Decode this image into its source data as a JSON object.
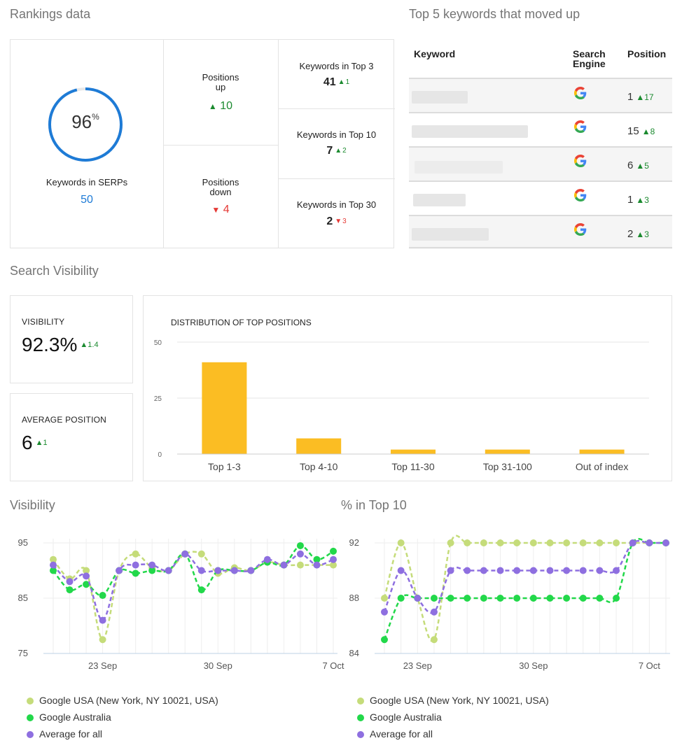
{
  "rankings": {
    "title": "Rankings data",
    "serp_percent": "96",
    "serp_percent_sign": "%",
    "serp_fraction": 0.96,
    "keywords_in_serps_label": "Keywords in SERPs",
    "keywords_in_serps_value": "50",
    "positions_up_label_1": "Positions",
    "positions_up_label_2": "up",
    "positions_up_value": "10",
    "positions_down_label_1": "Positions",
    "positions_down_label_2": "down",
    "positions_down_value": "4",
    "top3_label": "Keywords in Top 3",
    "top3_value": "41",
    "top3_delta": "1",
    "top10_label": "Keywords in Top 10",
    "top10_value": "7",
    "top10_delta": "2",
    "top30_label": "Keywords in Top 30",
    "top30_value": "2",
    "top30_delta": "3",
    "colors": {
      "up": "#1b8a2f",
      "down": "#e53935",
      "ring": "#1e7bd6"
    }
  },
  "top_keywords": {
    "title": "Top 5 keywords that moved up",
    "headers": {
      "keyword": "Keyword",
      "engine_1": "Search",
      "engine_2": "Engine",
      "position": "Position"
    },
    "rows": [
      {
        "position": "1",
        "delta": "17",
        "engine_icon": "google-icon"
      },
      {
        "position": "15",
        "delta": "8",
        "engine_icon": "google-icon"
      },
      {
        "position": "6",
        "delta": "5",
        "engine_icon": "google-icon"
      },
      {
        "position": "1",
        "delta": "3",
        "engine_icon": "google-icon"
      },
      {
        "position": "2",
        "delta": "3",
        "engine_icon": "google-icon"
      }
    ]
  },
  "search_visibility": {
    "title": "Search Visibility",
    "visibility_label": "VISIBILITY",
    "visibility_value": "92.3%",
    "visibility_delta": "1.4",
    "avg_position_label": "AVERAGE POSITION",
    "avg_position_value": "6",
    "avg_position_delta": "1"
  },
  "visibility_section": {
    "title": "Visibility"
  },
  "top10_section": {
    "title": "% in Top 10"
  },
  "legend": {
    "items": [
      {
        "label": "Google USA (New York, NY 10021, USA)",
        "color": "#c5dc7a"
      },
      {
        "label": "Google Australia",
        "color": "#22d84a"
      },
      {
        "label": "Average for all",
        "color": "#8e6fe0"
      }
    ]
  },
  "chart_data": [
    {
      "type": "bar",
      "title": "DISTRIBUTION OF TOP POSITIONS",
      "categories": [
        "Top 1-3",
        "Top 4-10",
        "Top 11-30",
        "Top 31-100",
        "Out of index"
      ],
      "values": [
        41,
        7,
        2,
        2,
        2
      ],
      "ylim": [
        0,
        50
      ],
      "yticks": [
        0,
        25,
        50
      ],
      "color": "#fbbd23",
      "grid": true
    },
    {
      "type": "line",
      "title": "",
      "ylim": [
        75,
        95
      ],
      "yticks": [
        75,
        85,
        95
      ],
      "x": [
        0,
        1,
        2,
        3,
        4,
        5,
        6,
        7,
        8,
        9,
        10,
        11,
        12,
        13,
        14,
        15,
        16,
        17
      ],
      "xtick_labels": [
        {
          "x": 3,
          "label": "23 Sep"
        },
        {
          "x": 10,
          "label": "30 Sep"
        },
        {
          "x": 17,
          "label": "7 Oct"
        }
      ],
      "series": [
        {
          "name": "Google USA (New York, NY 10021, USA)",
          "color": "#c5dc7a",
          "values": [
            92,
            88.5,
            90,
            77.5,
            90,
            93,
            90.5,
            90,
            93,
            93,
            89.5,
            90.5,
            90,
            91.5,
            91,
            91,
            91,
            91
          ]
        },
        {
          "name": "Google Australia",
          "color": "#22d84a",
          "values": [
            90,
            86.5,
            87.5,
            85.5,
            90,
            89.5,
            90,
            90,
            93,
            86.5,
            90,
            90,
            90,
            91.5,
            91,
            94.5,
            92,
            93.5
          ]
        },
        {
          "name": "Average for all",
          "color": "#8e6fe0",
          "values": [
            91,
            88,
            89,
            81,
            90,
            91,
            91,
            90,
            93,
            90,
            90,
            90,
            90,
            92,
            91,
            93,
            91,
            92
          ]
        }
      ],
      "grid": true
    },
    {
      "type": "line",
      "title": "",
      "ylim": [
        84,
        92
      ],
      "yticks": [
        84,
        88,
        92
      ],
      "x": [
        0,
        1,
        2,
        3,
        4,
        5,
        6,
        7,
        8,
        9,
        10,
        11,
        12,
        13,
        14,
        15,
        16,
        17
      ],
      "xtick_labels": [
        {
          "x": 2,
          "label": "23 Sep"
        },
        {
          "x": 9,
          "label": "30 Sep"
        },
        {
          "x": 16,
          "label": "7 Oct"
        }
      ],
      "series": [
        {
          "name": "Google USA (New York, NY 10021, USA)",
          "color": "#c5dc7a",
          "values": [
            88,
            92,
            88,
            85,
            92,
            92,
            92,
            92,
            92,
            92,
            92,
            92,
            92,
            92,
            92,
            92,
            92,
            92
          ]
        },
        {
          "name": "Google Australia",
          "color": "#22d84a",
          "values": [
            85,
            88,
            88,
            88,
            88,
            88,
            88,
            88,
            88,
            88,
            88,
            88,
            88,
            88,
            88,
            92,
            92,
            92
          ]
        },
        {
          "name": "Average for all",
          "color": "#8e6fe0",
          "values": [
            87,
            90,
            88,
            87,
            90,
            90,
            90,
            90,
            90,
            90,
            90,
            90,
            90,
            90,
            90,
            92,
            92,
            92
          ]
        }
      ],
      "grid": true
    }
  ]
}
